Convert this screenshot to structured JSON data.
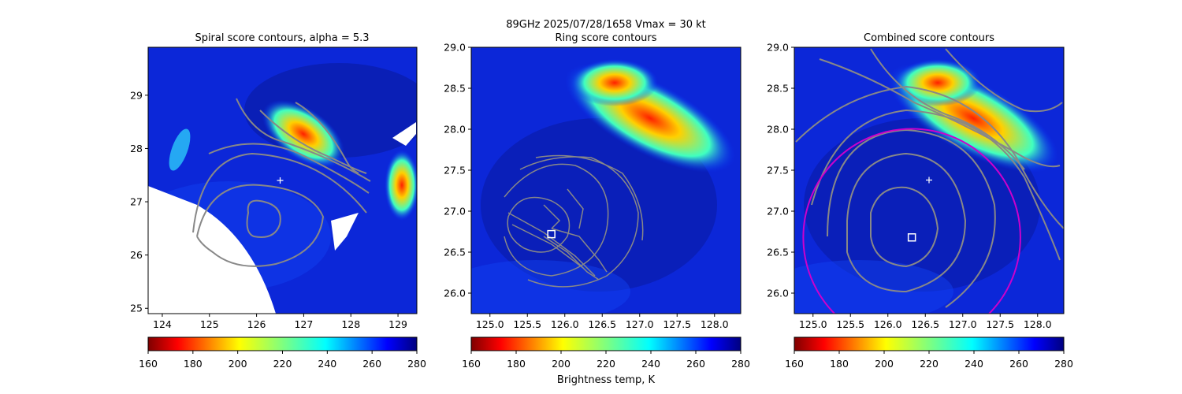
{
  "figure": {
    "suptitle": "89GHz  2025/07/28/1658    Vmax = 30 kt",
    "colorbar_label": "Brightness temp, K"
  },
  "colorbar": {
    "ticks": [
      160,
      180,
      200,
      220,
      240,
      260,
      280
    ],
    "colormap": "jet_r",
    "range": [
      160,
      280
    ]
  },
  "chart_data": [
    {
      "type": "heatmap",
      "title": "Spiral score contours, alpha =  5.3",
      "xticks": [
        124,
        125,
        126,
        127,
        128,
        129
      ],
      "yticks": [
        25,
        26,
        27,
        28,
        29
      ],
      "xlim": [
        123.7,
        129.4
      ],
      "ylim": [
        24.9,
        29.9
      ],
      "overlay": "grey spiral score contours",
      "center_marker": {
        "type": "plus",
        "x": 126.5,
        "y": 27.4
      },
      "no_data_region": "lower-left"
    },
    {
      "type": "heatmap",
      "title": "Ring score contours",
      "xticks": [
        125.0,
        125.5,
        126.0,
        126.5,
        127.0,
        127.5,
        128.0
      ],
      "yticks": [
        26.0,
        26.5,
        27.0,
        27.5,
        28.0,
        28.5,
        29.0
      ],
      "xlim": [
        124.75,
        128.35
      ],
      "ylim": [
        25.75,
        29.0
      ],
      "overlay": "grey ring score contours",
      "center_marker": {
        "type": "square",
        "x": 125.82,
        "y": 26.72
      }
    },
    {
      "type": "heatmap",
      "title": "Combined score contours",
      "xticks": [
        125.0,
        125.5,
        126.0,
        126.5,
        127.0,
        127.5,
        128.0
      ],
      "yticks": [
        26.0,
        26.5,
        27.0,
        27.5,
        28.0,
        28.5,
        29.0
      ],
      "xlim": [
        124.75,
        128.35
      ],
      "ylim": [
        25.75,
        29.0
      ],
      "overlay": "grey combined score contours",
      "center_marker": {
        "type": "square",
        "x": 126.32,
        "y": 26.68
      },
      "first_guess_marker": {
        "type": "plus",
        "x": 126.55,
        "y": 27.38
      },
      "ring": {
        "color": "#cc00cc",
        "center_x": 126.32,
        "center_y": 26.68,
        "radius_deg": 1.45
      }
    }
  ]
}
